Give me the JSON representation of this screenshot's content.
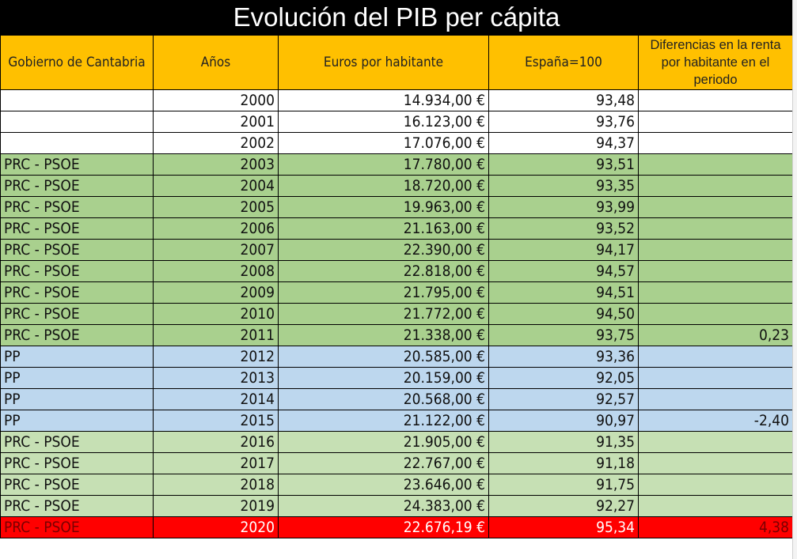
{
  "title": "Evolución del PIB per cápita",
  "headers": {
    "gobierno": "Gobierno de Cantabria",
    "anos": "Años",
    "euros": "Euros por habitante",
    "espana": "España=100",
    "diferencias": "Diferencias en la renta por habitante en el periodo"
  },
  "colors": {
    "header_bg": "#ffc000",
    "title_bg": "#000000",
    "prc_psoe_2003_2011": "#a9d08e",
    "pp": "#bdd7ee",
    "prc_psoe_2016_2019": "#c6e0b4",
    "highlight_2020": "#ff0000"
  },
  "rows": [
    {
      "gobierno": "",
      "ano": "2000",
      "euros": "14.934,00 €",
      "espana": "93,48",
      "dif": ""
    },
    {
      "gobierno": "",
      "ano": "2001",
      "euros": "16.123,00 €",
      "espana": "93,76",
      "dif": ""
    },
    {
      "gobierno": "",
      "ano": "2002",
      "euros": "17.076,00 €",
      "espana": "94,37",
      "dif": ""
    },
    {
      "gobierno": "PRC - PSOE",
      "ano": "2003",
      "euros": "17.780,00 €",
      "espana": "93,51",
      "dif": ""
    },
    {
      "gobierno": "PRC - PSOE",
      "ano": "2004",
      "euros": "18.720,00 €",
      "espana": "93,35",
      "dif": ""
    },
    {
      "gobierno": "PRC - PSOE",
      "ano": "2005",
      "euros": "19.963,00 €",
      "espana": "93,99",
      "dif": ""
    },
    {
      "gobierno": "PRC - PSOE",
      "ano": "2006",
      "euros": "21.163,00 €",
      "espana": "93,52",
      "dif": ""
    },
    {
      "gobierno": "PRC - PSOE",
      "ano": "2007",
      "euros": "22.390,00 €",
      "espana": "94,17",
      "dif": ""
    },
    {
      "gobierno": "PRC - PSOE",
      "ano": "2008",
      "euros": "22.818,00 €",
      "espana": "94,57",
      "dif": ""
    },
    {
      "gobierno": "PRC - PSOE",
      "ano": "2009",
      "euros": "21.795,00 €",
      "espana": "94,51",
      "dif": ""
    },
    {
      "gobierno": "PRC - PSOE",
      "ano": "2010",
      "euros": "21.772,00 €",
      "espana": "94,50",
      "dif": ""
    },
    {
      "gobierno": "PRC - PSOE",
      "ano": "2011",
      "euros": "21.338,00 €",
      "espana": "93,75",
      "dif": "0,23"
    },
    {
      "gobierno": "PP",
      "ano": "2012",
      "euros": "20.585,00 €",
      "espana": "93,36",
      "dif": ""
    },
    {
      "gobierno": "PP",
      "ano": "2013",
      "euros": "20.159,00 €",
      "espana": "92,05",
      "dif": ""
    },
    {
      "gobierno": "PP",
      "ano": "2014",
      "euros": "20.568,00 €",
      "espana": "92,57",
      "dif": ""
    },
    {
      "gobierno": "PP",
      "ano": "2015",
      "euros": "21.122,00 €",
      "espana": "90,97",
      "dif": "-2,40"
    },
    {
      "gobierno": "PRC - PSOE",
      "ano": "2016",
      "euros": "21.905,00 €",
      "espana": "91,35",
      "dif": ""
    },
    {
      "gobierno": "PRC - PSOE",
      "ano": "2017",
      "euros": "22.767,00 €",
      "espana": "91,18",
      "dif": ""
    },
    {
      "gobierno": "PRC - PSOE",
      "ano": "2018",
      "euros": "23.646,00 €",
      "espana": "91,75",
      "dif": ""
    },
    {
      "gobierno": "PRC - PSOE",
      "ano": "2019",
      "euros": "24.383,00 €",
      "espana": "92,27",
      "dif": ""
    },
    {
      "gobierno": "PRC - PSOE",
      "ano": "2020",
      "euros": "22.676,19 €",
      "espana": "95,34",
      "dif": "4,38"
    }
  ]
}
